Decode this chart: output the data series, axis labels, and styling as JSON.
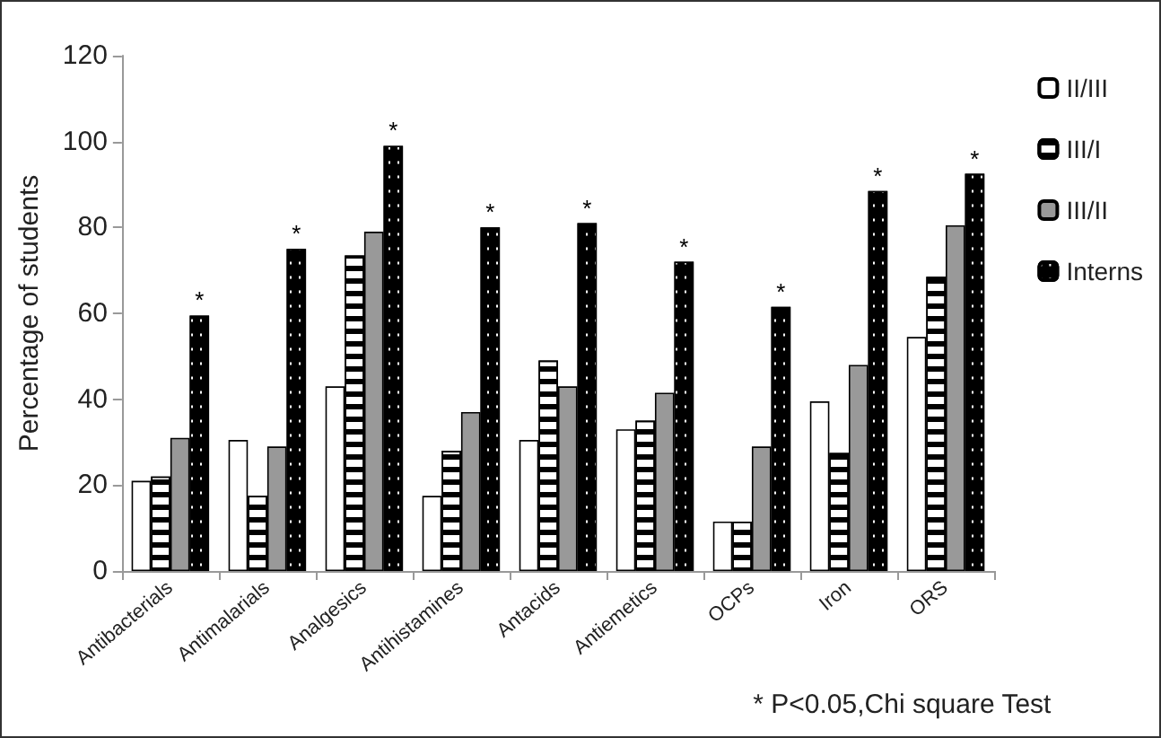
{
  "chart_data": {
    "type": "bar",
    "ylabel": "Percentage of students",
    "categories": [
      "Antibacterials",
      "Antimalarials",
      "Analgesics",
      "Antihistamines",
      "Antacids",
      "Antiemetics",
      "OCPs",
      "Iron",
      "ORS"
    ],
    "series": [
      {
        "name": "II/III",
        "color": "#ffffff",
        "values": [
          21,
          30.5,
          43,
          17.5,
          30.5,
          33,
          11.5,
          39.5,
          54.5
        ]
      },
      {
        "name": "III/I",
        "color": "#ffffff",
        "values": [
          22,
          17.5,
          73.5,
          28,
          49,
          35,
          11.5,
          27.5,
          68.5
        ]
      },
      {
        "name": "III/II",
        "color": "#999999",
        "values": [
          31,
          29,
          79,
          37,
          43,
          41.5,
          29,
          48,
          80.5
        ]
      },
      {
        "name": "Interns",
        "color": "#000000",
        "values": [
          59.5,
          75,
          99,
          80,
          81,
          72,
          61.5,
          88.5,
          92.5
        ],
        "value_labels": [
          "*",
          "*",
          "*",
          "*",
          "*",
          "*",
          "*",
          "*",
          "*"
        ]
      }
    ],
    "ylim": [
      0,
      120
    ],
    "yticks": [
      0,
      20,
      40,
      60,
      80,
      100,
      120
    ],
    "grid": false,
    "legend": "right",
    "annotations": [
      "* P<0.05,Chi square Test"
    ]
  }
}
